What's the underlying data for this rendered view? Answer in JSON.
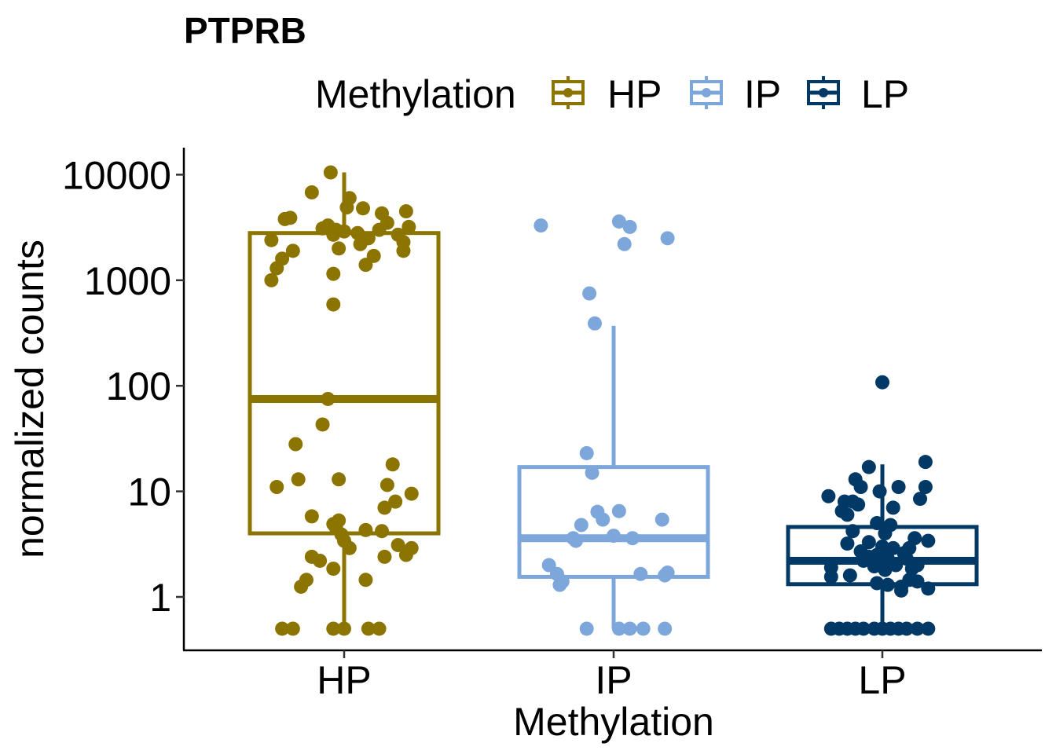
{
  "chart_data": {
    "type": "box",
    "title": "PTPRB",
    "xlabel": "Methylation",
    "ylabel": "normalized counts",
    "yscale": "log10",
    "ylim": [
      0.3,
      17000
    ],
    "yticks": [
      {
        "value": 1,
        "label": "1"
      },
      {
        "value": 10,
        "label": "10"
      },
      {
        "value": 100,
        "label": "100"
      },
      {
        "value": 1000,
        "label": "1000"
      },
      {
        "value": 10000,
        "label": "10000"
      }
    ],
    "categories": [
      "HP",
      "IP",
      "LP"
    ],
    "legend": {
      "title": "Methylation",
      "position": "top",
      "entries": [
        "HP",
        "IP",
        "LP"
      ]
    },
    "colors": {
      "HP": "#8c7400",
      "IP": "#7da7db",
      "LP": "#003866"
    },
    "series": [
      {
        "name": "HP",
        "box": {
          "q1": 4,
          "median": 75,
          "q3": 2800,
          "whisker_low": 0.5,
          "whisker_high": 10500
        },
        "points": [
          {
            "jitter": -0.05,
            "y": 10500
          },
          {
            "jitter": -0.12,
            "y": 6800
          },
          {
            "jitter": 0.02,
            "y": 6000
          },
          {
            "jitter": 0.07,
            "y": 4800
          },
          {
            "jitter": 0.23,
            "y": 4500
          },
          {
            "jitter": 0.14,
            "y": 4300
          },
          {
            "jitter": 0.01,
            "y": 4900
          },
          {
            "jitter": -0.2,
            "y": 3900
          },
          {
            "jitter": -0.22,
            "y": 3800
          },
          {
            "jitter": 0.16,
            "y": 3500
          },
          {
            "jitter": -0.06,
            "y": 3300
          },
          {
            "jitter": -0.08,
            "y": 3100
          },
          {
            "jitter": -0.03,
            "y": 3000
          },
          {
            "jitter": 0.0,
            "y": 2900
          },
          {
            "jitter": -0.04,
            "y": 2700
          },
          {
            "jitter": 0.05,
            "y": 2800
          },
          {
            "jitter": 0.13,
            "y": 3000
          },
          {
            "jitter": 0.24,
            "y": 3200
          },
          {
            "jitter": 0.2,
            "y": 2700
          },
          {
            "jitter": 0.09,
            "y": 2500
          },
          {
            "jitter": -0.27,
            "y": 2400
          },
          {
            "jitter": 0.22,
            "y": 2300
          },
          {
            "jitter": 0.06,
            "y": 2200
          },
          {
            "jitter": -0.02,
            "y": 2000
          },
          {
            "jitter": 0.22,
            "y": 1900
          },
          {
            "jitter": -0.19,
            "y": 1900
          },
          {
            "jitter": 0.11,
            "y": 1700
          },
          {
            "jitter": -0.23,
            "y": 1600
          },
          {
            "jitter": 0.08,
            "y": 1400
          },
          {
            "jitter": -0.25,
            "y": 1300
          },
          {
            "jitter": -0.04,
            "y": 1150
          },
          {
            "jitter": -0.27,
            "y": 1000
          },
          {
            "jitter": -0.04,
            "y": 590
          },
          {
            "jitter": -0.06,
            "y": 75
          },
          {
            "jitter": -0.08,
            "y": 43
          },
          {
            "jitter": -0.18,
            "y": 28
          },
          {
            "jitter": 0.18,
            "y": 18
          },
          {
            "jitter": -0.02,
            "y": 13
          },
          {
            "jitter": -0.17,
            "y": 13
          },
          {
            "jitter": 0.16,
            "y": 11.5
          },
          {
            "jitter": -0.25,
            "y": 11
          },
          {
            "jitter": 0.25,
            "y": 9.5
          },
          {
            "jitter": 0.19,
            "y": 8
          },
          {
            "jitter": 0.15,
            "y": 7
          },
          {
            "jitter": -0.12,
            "y": 5.8
          },
          {
            "jitter": -0.02,
            "y": 5.3
          },
          {
            "jitter": -0.04,
            "y": 4.9
          },
          {
            "jitter": -0.03,
            "y": 4.5
          },
          {
            "jitter": 0.08,
            "y": 4.3
          },
          {
            "jitter": 0.14,
            "y": 4.2
          },
          {
            "jitter": -0.01,
            "y": 3.9
          },
          {
            "jitter": 0.0,
            "y": 3.4
          },
          {
            "jitter": 0.2,
            "y": 3.1
          },
          {
            "jitter": 0.02,
            "y": 2.9
          },
          {
            "jitter": 0.25,
            "y": 2.9
          },
          {
            "jitter": 0.23,
            "y": 2.5
          },
          {
            "jitter": 0.15,
            "y": 2.4
          },
          {
            "jitter": -0.12,
            "y": 2.4
          },
          {
            "jitter": -0.09,
            "y": 2.2
          },
          {
            "jitter": -0.04,
            "y": 1.85
          },
          {
            "jitter": 0.08,
            "y": 1.45
          },
          {
            "jitter": -0.14,
            "y": 1.45
          },
          {
            "jitter": -0.16,
            "y": 1.25
          },
          {
            "jitter": -0.23,
            "y": 0.5
          },
          {
            "jitter": -0.19,
            "y": 0.5
          },
          {
            "jitter": -0.04,
            "y": 0.5
          },
          {
            "jitter": 0.0,
            "y": 0.5
          },
          {
            "jitter": 0.09,
            "y": 0.5
          },
          {
            "jitter": 0.13,
            "y": 0.5
          }
        ]
      },
      {
        "name": "IP",
        "box": {
          "q1": 1.55,
          "median": 3.6,
          "q3": 17,
          "whisker_low": 0.5,
          "whisker_high": 370
        },
        "points": [
          {
            "jitter": -0.27,
            "y": 3300
          },
          {
            "jitter": 0.02,
            "y": 3600
          },
          {
            "jitter": 0.06,
            "y": 3200
          },
          {
            "jitter": 0.04,
            "y": 2200
          },
          {
            "jitter": 0.2,
            "y": 2500
          },
          {
            "jitter": -0.09,
            "y": 750
          },
          {
            "jitter": -0.07,
            "y": 390
          },
          {
            "jitter": -0.1,
            "y": 23
          },
          {
            "jitter": -0.08,
            "y": 15
          },
          {
            "jitter": -0.06,
            "y": 6.4
          },
          {
            "jitter": 0.02,
            "y": 6.5
          },
          {
            "jitter": -0.04,
            "y": 5.4
          },
          {
            "jitter": -0.12,
            "y": 4.8
          },
          {
            "jitter": 0.18,
            "y": 5.4
          },
          {
            "jitter": 0.0,
            "y": 3.8
          },
          {
            "jitter": 0.07,
            "y": 3.6
          },
          {
            "jitter": -0.15,
            "y": 3.6
          },
          {
            "jitter": -0.14,
            "y": 3.4
          },
          {
            "jitter": -0.24,
            "y": 2.0
          },
          {
            "jitter": -0.21,
            "y": 1.65
          },
          {
            "jitter": 0.1,
            "y": 1.65
          },
          {
            "jitter": 0.2,
            "y": 1.7
          },
          {
            "jitter": 0.19,
            "y": 1.6
          },
          {
            "jitter": -0.19,
            "y": 1.4
          },
          {
            "jitter": -0.2,
            "y": 1.3
          },
          {
            "jitter": -0.1,
            "y": 0.5
          },
          {
            "jitter": 0.02,
            "y": 0.5
          },
          {
            "jitter": 0.06,
            "y": 0.5
          },
          {
            "jitter": 0.11,
            "y": 0.5
          },
          {
            "jitter": 0.19,
            "y": 0.5
          }
        ]
      },
      {
        "name": "LP",
        "box": {
          "q1": 1.32,
          "median": 2.2,
          "q3": 4.6,
          "whisker_low": 0.5,
          "whisker_high": 18
        },
        "points": [
          {
            "jitter": 0.0,
            "y": 108
          },
          {
            "jitter": 0.16,
            "y": 19
          },
          {
            "jitter": -0.05,
            "y": 17
          },
          {
            "jitter": -0.1,
            "y": 13
          },
          {
            "jitter": -0.08,
            "y": 11
          },
          {
            "jitter": 0.06,
            "y": 11
          },
          {
            "jitter": 0.16,
            "y": 11
          },
          {
            "jitter": -0.01,
            "y": 10
          },
          {
            "jitter": -0.2,
            "y": 9
          },
          {
            "jitter": 0.14,
            "y": 8.5
          },
          {
            "jitter": -0.11,
            "y": 8
          },
          {
            "jitter": -0.14,
            "y": 8
          },
          {
            "jitter": -0.09,
            "y": 7.5
          },
          {
            "jitter": 0.04,
            "y": 7
          },
          {
            "jitter": -0.15,
            "y": 6.5
          },
          {
            "jitter": -0.13,
            "y": 6
          },
          {
            "jitter": -0.02,
            "y": 5
          },
          {
            "jitter": 0.03,
            "y": 4.8
          },
          {
            "jitter": -0.11,
            "y": 4.2
          },
          {
            "jitter": 0.01,
            "y": 4.0
          },
          {
            "jitter": 0.12,
            "y": 3.6
          },
          {
            "jitter": 0.17,
            "y": 3.4
          },
          {
            "jitter": -0.05,
            "y": 3.3
          },
          {
            "jitter": -0.13,
            "y": 3.2
          },
          {
            "jitter": 0.0,
            "y": 3.0
          },
          {
            "jitter": 0.04,
            "y": 2.9
          },
          {
            "jitter": 0.1,
            "y": 2.9
          },
          {
            "jitter": -0.08,
            "y": 2.7
          },
          {
            "jitter": 0.08,
            "y": 2.6
          },
          {
            "jitter": -0.02,
            "y": 2.5
          },
          {
            "jitter": -0.05,
            "y": 2.4
          },
          {
            "jitter": 0.02,
            "y": 2.3
          },
          {
            "jitter": 0.09,
            "y": 2.3
          },
          {
            "jitter": -0.07,
            "y": 2.2
          },
          {
            "jitter": 0.05,
            "y": 2.0
          },
          {
            "jitter": 0.13,
            "y": 2.0
          },
          {
            "jitter": -0.03,
            "y": 1.95
          },
          {
            "jitter": -0.19,
            "y": 1.9
          },
          {
            "jitter": 0.11,
            "y": 1.85
          },
          {
            "jitter": 0.01,
            "y": 1.8
          },
          {
            "jitter": -0.12,
            "y": 1.6
          },
          {
            "jitter": -0.19,
            "y": 1.55
          },
          {
            "jitter": 0.1,
            "y": 1.45
          },
          {
            "jitter": 0.13,
            "y": 1.4
          },
          {
            "jitter": -0.02,
            "y": 1.35
          },
          {
            "jitter": 0.02,
            "y": 1.3
          },
          {
            "jitter": 0.07,
            "y": 1.25
          },
          {
            "jitter": 0.17,
            "y": 1.2
          },
          {
            "jitter": 0.07,
            "y": 1.15
          },
          {
            "jitter": -0.19,
            "y": 0.5
          },
          {
            "jitter": -0.16,
            "y": 0.5
          },
          {
            "jitter": -0.13,
            "y": 0.5
          },
          {
            "jitter": -0.1,
            "y": 0.5
          },
          {
            "jitter": -0.07,
            "y": 0.5
          },
          {
            "jitter": -0.03,
            "y": 0.5
          },
          {
            "jitter": 0.0,
            "y": 0.5
          },
          {
            "jitter": 0.03,
            "y": 0.5
          },
          {
            "jitter": 0.06,
            "y": 0.5
          },
          {
            "jitter": 0.09,
            "y": 0.5
          },
          {
            "jitter": 0.13,
            "y": 0.5
          },
          {
            "jitter": 0.17,
            "y": 0.5
          }
        ]
      }
    ]
  }
}
